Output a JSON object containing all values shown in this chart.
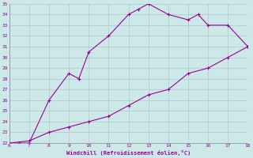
{
  "line1_x": [
    6,
    6.5,
    7,
    8,
    9,
    9.5,
    10,
    11,
    12,
    12.5,
    13,
    14,
    15,
    15.5,
    16,
    17,
    18
  ],
  "line1_y": [
    22,
    22,
    22,
    26,
    28.5,
    28,
    30.5,
    32,
    34,
    34.5,
    35,
    34,
    33.5,
    34,
    33,
    33,
    31
  ],
  "line2_x": [
    6,
    7,
    8,
    9,
    10,
    11,
    12,
    13,
    14,
    15,
    16,
    17,
    18
  ],
  "line2_y": [
    22,
    22.2,
    23,
    23.5,
    24,
    24.5,
    25.5,
    26.5,
    27,
    28.5,
    29,
    30,
    31
  ],
  "line_color": "#990099",
  "bg_color": "#cce8e8",
  "grid_color": "#b0c8c8",
  "xlabel": "Windchill (Refroidissement éolien,°C)",
  "xlim": [
    6,
    18
  ],
  "ylim": [
    22,
    35
  ],
  "xticks": [
    6,
    7,
    8,
    9,
    10,
    11,
    12,
    13,
    14,
    15,
    16,
    17,
    18
  ],
  "yticks": [
    22,
    23,
    24,
    25,
    26,
    27,
    28,
    29,
    30,
    31,
    32,
    33,
    34,
    35
  ],
  "xlabel_color": "#990099",
  "tick_color": "#990099",
  "marker": "+"
}
